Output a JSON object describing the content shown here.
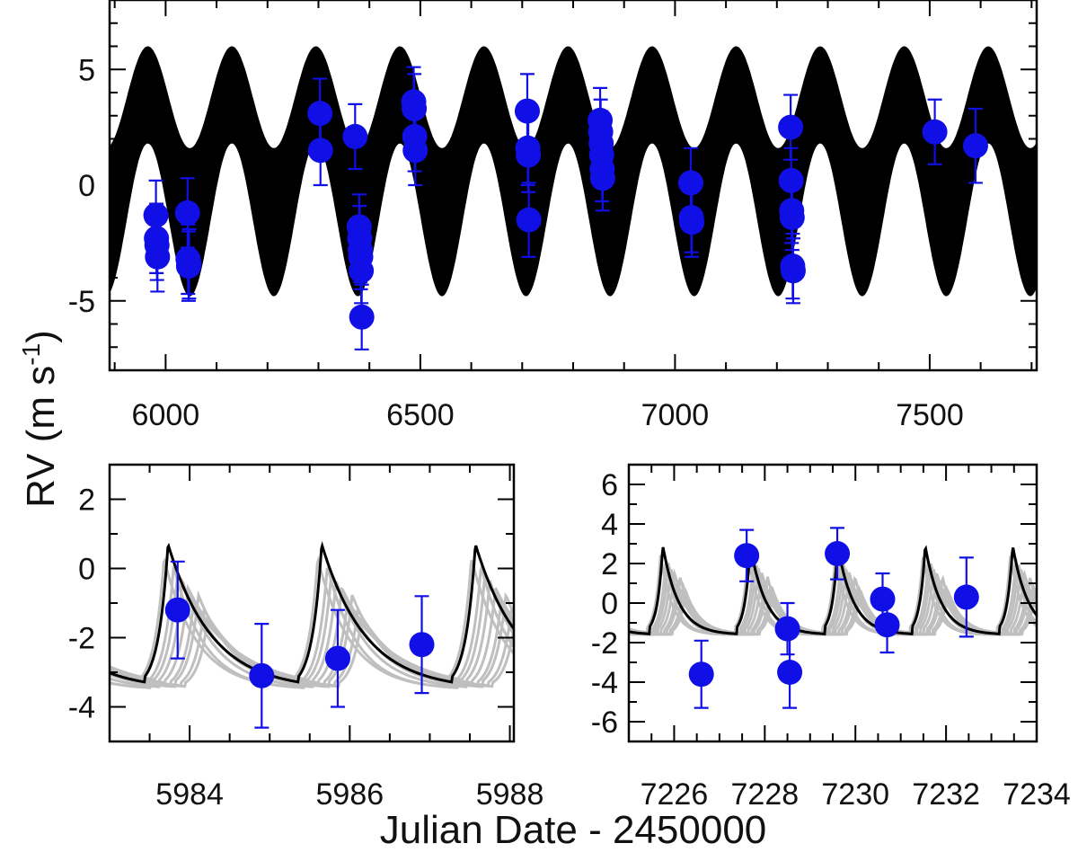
{
  "ylabel": "RV (m s",
  "ylabel_sup": "-1",
  "ylabel_close": ")",
  "xlabel": "Julian Date - 2450000",
  "colors": {
    "points": "#1010e6",
    "model": "#000000",
    "fan": "#bfbfbf"
  },
  "chart_data": [
    {
      "id": "top",
      "type": "scatter",
      "xlim": [
        5890,
        7710
      ],
      "ylim": [
        -8,
        8
      ],
      "xticks": [
        "6000",
        "6500",
        "7000",
        "7500"
      ],
      "xtick_values": [
        6000,
        6500,
        7000,
        7500
      ],
      "yticks": [
        "5",
        "0",
        "-5"
      ],
      "ytick_values": [
        5,
        0,
        -5
      ],
      "model_band": {
        "period": 165,
        "phase_x": 6130,
        "center_hi": 3.8,
        "amp_hi": 2.2,
        "center_lo": -1.5,
        "amp_lo": 3.3
      },
      "points": [
        {
          "x": 5981,
          "y": -1.3,
          "e": 1.5
        },
        {
          "x": 5982,
          "y": -2.3,
          "e": 1.5
        },
        {
          "x": 5983,
          "y": -2.6,
          "e": 1.5
        },
        {
          "x": 5984,
          "y": -3.1,
          "e": 1.5
        },
        {
          "x": 6043,
          "y": -1.2,
          "e": 1.5
        },
        {
          "x": 6044,
          "y": -3.2,
          "e": 1.5
        },
        {
          "x": 6045,
          "y": -3.5,
          "e": 1.5
        },
        {
          "x": 6046,
          "y": -3.4,
          "e": 1.5
        },
        {
          "x": 6303,
          "y": 3.1,
          "e": 1.5
        },
        {
          "x": 6304,
          "y": 1.5,
          "e": 1.5
        },
        {
          "x": 6372,
          "y": 2.1,
          "e": 1.4
        },
        {
          "x": 6380,
          "y": -1.8,
          "e": 1.4
        },
        {
          "x": 6381,
          "y": -2.3,
          "e": 1.4
        },
        {
          "x": 6382,
          "y": -2.8,
          "e": 1.4
        },
        {
          "x": 6383,
          "y": -3.1,
          "e": 1.4
        },
        {
          "x": 6384,
          "y": -3.7,
          "e": 1.4
        },
        {
          "x": 6385,
          "y": -5.7,
          "e": 1.4
        },
        {
          "x": 6487,
          "y": 3.6,
          "e": 1.5
        },
        {
          "x": 6488,
          "y": 3.3,
          "e": 1.5
        },
        {
          "x": 6489,
          "y": 2.1,
          "e": 1.5
        },
        {
          "x": 6490,
          "y": 1.5,
          "e": 1.5
        },
        {
          "x": 6710,
          "y": 3.2,
          "e": 1.6
        },
        {
          "x": 6711,
          "y": 1.6,
          "e": 1.6
        },
        {
          "x": 6712,
          "y": 1.3,
          "e": 1.6
        },
        {
          "x": 6713,
          "y": -1.5,
          "e": 1.6
        },
        {
          "x": 6853,
          "y": 2.8,
          "e": 1.4
        },
        {
          "x": 6854,
          "y": 2.3,
          "e": 1.4
        },
        {
          "x": 6855,
          "y": 1.8,
          "e": 1.4
        },
        {
          "x": 6856,
          "y": 1.3,
          "e": 1.4
        },
        {
          "x": 6857,
          "y": 0.7,
          "e": 1.4
        },
        {
          "x": 6858,
          "y": 0.3,
          "e": 1.4
        },
        {
          "x": 7031,
          "y": 0.1,
          "e": 1.5
        },
        {
          "x": 7032,
          "y": -1.4,
          "e": 1.5
        },
        {
          "x": 7033,
          "y": -1.6,
          "e": 1.5
        },
        {
          "x": 7227,
          "y": 2.5,
          "e": 1.4
        },
        {
          "x": 7228,
          "y": 0.2,
          "e": 1.4
        },
        {
          "x": 7229,
          "y": -1.1,
          "e": 1.4
        },
        {
          "x": 7230,
          "y": -1.4,
          "e": 1.4
        },
        {
          "x": 7231,
          "y": -3.5,
          "e": 1.4
        },
        {
          "x": 7232,
          "y": -3.7,
          "e": 1.4
        },
        {
          "x": 7510,
          "y": 2.3,
          "e": 1.4
        },
        {
          "x": 7590,
          "y": 1.7,
          "e": 1.6
        }
      ]
    },
    {
      "id": "bottom-left",
      "type": "line",
      "xlim": [
        5983,
        5988.05
      ],
      "ylim": [
        -5,
        3
      ],
      "xticks": [
        "5984",
        "5986",
        "5988"
      ],
      "xtick_values": [
        5984,
        5986,
        5988
      ],
      "yticks": [
        "2",
        "0",
        "-2",
        "-4"
      ],
      "ytick_values": [
        2,
        0,
        -2,
        -4
      ],
      "model": {
        "period": 1.92,
        "peak_x": 5983.73,
        "baseline": -3.5,
        "amp": 4.2,
        "decay": 0.55
      },
      "points": [
        {
          "x": 5983.85,
          "y": -1.2,
          "e": 1.4
        },
        {
          "x": 5984.9,
          "y": -3.1,
          "e": 1.5
        },
        {
          "x": 5985.85,
          "y": -2.6,
          "e": 1.4
        },
        {
          "x": 5986.9,
          "y": -2.2,
          "e": 1.4
        }
      ]
    },
    {
      "id": "bottom-right",
      "type": "line",
      "xlim": [
        7225,
        7234
      ],
      "ylim": [
        -7,
        7
      ],
      "xticks": [
        "7226",
        "7228",
        "7230",
        "7232",
        "7234"
      ],
      "xtick_values": [
        7226,
        7228,
        7230,
        7232,
        7234
      ],
      "yticks": [
        "6",
        "4",
        "2",
        "0",
        "-2",
        "-4",
        "-6"
      ],
      "ytick_values": [
        6,
        4,
        2,
        0,
        -2,
        -4,
        -6
      ],
      "model": {
        "period": 1.93,
        "peak_x": 7225.75,
        "baseline": -1.6,
        "amp": 4.5,
        "decay": 0.35
      },
      "points": [
        {
          "x": 7226.6,
          "y": -3.6,
          "e": 1.7
        },
        {
          "x": 7227.6,
          "y": 2.4,
          "e": 1.3
        },
        {
          "x": 7228.5,
          "y": -1.3,
          "e": 1.3
        },
        {
          "x": 7228.55,
          "y": -3.5,
          "e": 1.8
        },
        {
          "x": 7229.6,
          "y": 2.5,
          "e": 1.3
        },
        {
          "x": 7230.6,
          "y": 0.2,
          "e": 1.3
        },
        {
          "x": 7230.7,
          "y": -1.1,
          "e": 1.4
        },
        {
          "x": 7232.45,
          "y": 0.3,
          "e": 2.0
        }
      ]
    }
  ]
}
